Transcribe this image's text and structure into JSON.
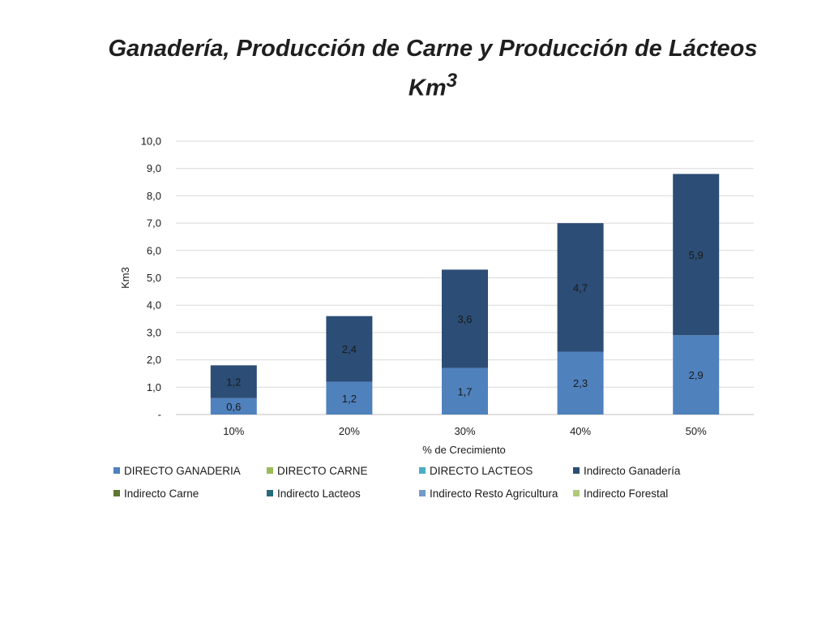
{
  "title": {
    "line1": "Ganadería, Producción de Carne y Producción de Lácteos",
    "line2_base": "Km",
    "line2_sup": "3"
  },
  "chart_data": {
    "type": "bar",
    "stacked": true,
    "categories": [
      "10%",
      "20%",
      "30%",
      "40%",
      "50%"
    ],
    "series": [
      {
        "name": "DIRECTO GANADERIA",
        "color": "#4f81bd",
        "values": [
          0.6,
          1.2,
          1.7,
          2.3,
          2.9
        ],
        "labels": [
          "0,6",
          "1,2",
          "1,7",
          "2,3",
          "2,9"
        ]
      },
      {
        "name": "DIRECTO CARNE",
        "color": "#9bbb59",
        "values": [
          0,
          0,
          0,
          0,
          0
        ],
        "labels": []
      },
      {
        "name": "DIRECTO LACTEOS",
        "color": "#4bacc6",
        "values": [
          0,
          0,
          0,
          0,
          0
        ],
        "labels": []
      },
      {
        "name": "Indirecto Ganadería",
        "color": "#2c4d75",
        "values": [
          1.2,
          2.4,
          3.6,
          4.7,
          5.9
        ],
        "labels": [
          "1,2",
          "2,4",
          "3,6",
          "4,7",
          "5,9"
        ]
      },
      {
        "name": "Indirecto Carne",
        "color": "#5f7530",
        "values": [
          0,
          0,
          0,
          0,
          0
        ],
        "labels": []
      },
      {
        "name": "Indirecto Lacteos",
        "color": "#276a7c",
        "values": [
          0,
          0,
          0,
          0,
          0
        ],
        "labels": []
      },
      {
        "name": "Indirecto Resto Agricultura",
        "color": "#729aca",
        "values": [
          0,
          0,
          0,
          0,
          0
        ],
        "labels": []
      },
      {
        "name": "Indirecto Forestal",
        "color": "#afc97a",
        "values": [
          0,
          0,
          0,
          0,
          0
        ],
        "labels": []
      }
    ],
    "xlabel": "% de Crecimiento",
    "ylabel": "Km3",
    "ylim": [
      0,
      10
    ],
    "yticks": [
      "-",
      "1,0",
      "2,0",
      "3,0",
      "4,0",
      "5,0",
      "6,0",
      "7,0",
      "8,0",
      "9,0",
      "10,0"
    ],
    "grid": true,
    "legend": "bottom"
  }
}
